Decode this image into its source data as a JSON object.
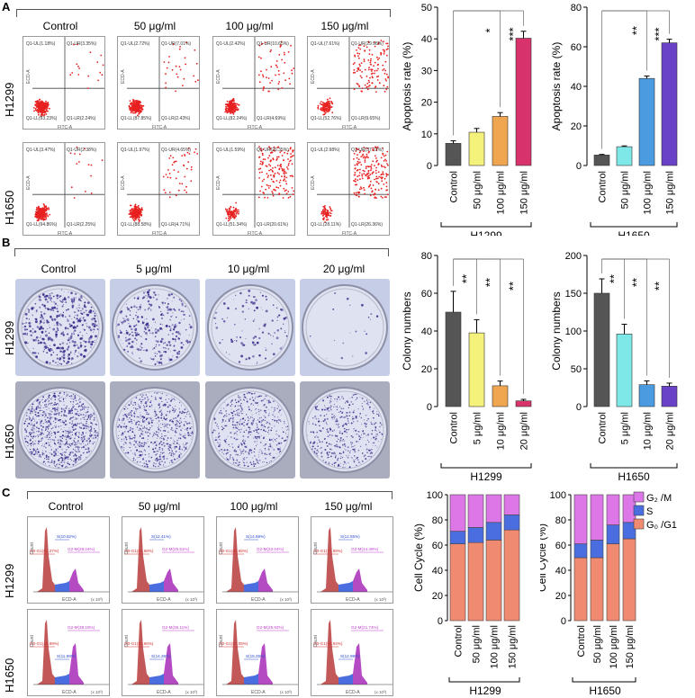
{
  "panels": {
    "a": {
      "letter": "A",
      "conditions": [
        "Control",
        "50 μg/ml",
        "100 μg/ml",
        "150 μg/ml"
      ],
      "rows": [
        {
          "label": "H1299",
          "quadrants": [
            [
              "Q1-UL(1.18%)",
              "Q1-UR(3.35%)",
              "Q1-LL(93.23%)",
              "Q1-LR(2.24%)"
            ],
            [
              "Q1-UL(2.72%)",
              "Q1-UR(7.01%)",
              "Q1-LL(87.85%)",
              "Q1-LR(2.43%)"
            ],
            [
              "Q1-UL(2.42%)",
              "Q1-UR(10.65%)",
              "Q1-LL(82.24%)",
              "Q1-LR(4.69%)"
            ],
            [
              "Q1-UL(7.61%)",
              "Q1-UR(29.98%)",
              "Q1-LL(52.76%)",
              "Q1-LR(9.65%)"
            ]
          ]
        },
        {
          "label": "H1650",
          "quadrants": [
            [
              "Q1-UL(3.47%)",
              "Q1-UR(2.38%)",
              "Q1-LL(94.86%)",
              "Q1-LR(2.25%)"
            ],
            [
              "Q1-UL(1.97%)",
              "Q1-UR(4.65%)",
              "Q1-LL(88.58%)",
              "Q1-LR(4.71%)"
            ],
            [
              "Q1-UL(1.59%)",
              "Q1-UR(26.35%)",
              "Q1-LL(51.34%)",
              "Q1-LR(20.61%)"
            ],
            [
              "Q1-UL(2.98%)",
              "Q1-UR(37.72%)",
              "Q1-LL(28.11%)",
              "Q1-LR(26.36%)"
            ]
          ]
        }
      ],
      "axis_x": "FITC-A",
      "axis_y": "ECD-A"
    },
    "b": {
      "letter": "B",
      "conditions": [
        "Control",
        "5 μg/ml",
        "10 μg/ml",
        "20 μg/ml"
      ],
      "rows": [
        "H1299",
        "H1650"
      ]
    },
    "c": {
      "letter": "C",
      "conditions": [
        "Control",
        "50 μg/ml",
        "100 μg/ml",
        "150 μg/ml"
      ],
      "rows": [
        {
          "label": "H1299",
          "gates": [
            [
              "G0-G1(61.27%)",
              "S(10.62%)",
              "G2-M(28.24%)"
            ],
            [
              "G0-G1(61.68%)",
              "S(12.41%)",
              "G2-M(25.51%)"
            ],
            [
              "G0-G1(63.65%)",
              "S(14.69%)",
              "G2-M(22.04%)"
            ],
            [
              "G0-G1(71.69%)",
              "S(12.55%)",
              "G2-M(14.49%)"
            ]
          ]
        },
        {
          "label": "H1650",
          "gates": [
            [
              "G0-G1(49.99%)",
              "S(11.99%)",
              "G2-M(38.18%)"
            ],
            [
              "G0-G1(50.66%)",
              "S(14.26%)",
              "G2-M(36.11%)"
            ],
            [
              "G0-G1(57.05%)",
              "S(15.25%)",
              "G2-M(25.92%)"
            ],
            [
              "G0-G1(58.94%)",
              "S(12.99%)",
              "G2-M(21.74%)"
            ]
          ]
        }
      ],
      "axis_x": "ECD-A",
      "axis_y": "Count",
      "axis_scale": "(x 10³)"
    }
  },
  "colors": {
    "control": "#555555",
    "low": "#f4f27a",
    "mid": "#f0a550",
    "high": "#d8326c",
    "h1650_low": "#7ee8e8",
    "h1650_mid": "#4a9be0",
    "h1650_high": "#6a42c8",
    "g01": "#f08a70",
    "s": "#4a6ee0",
    "g2m": "#dd77e8",
    "scatter": "#e82020"
  },
  "chart_data": [
    {
      "type": "bar",
      "id": "a-h1299",
      "title": "",
      "xlabel": "H1299",
      "ylabel": "Apoptosis rate (%)",
      "categories": [
        "Control",
        "50 μg/ml",
        "100 μg/ml",
        "150 μg/ml"
      ],
      "values": [
        7,
        10.5,
        15.5,
        40.2
      ],
      "errors": [
        0.8,
        1.2,
        1.2,
        2.2
      ],
      "ylim": [
        0,
        50
      ],
      "yticks": [
        0,
        10,
        20,
        30,
        40,
        50
      ],
      "significance": [
        {
          "to": 2,
          "label": "*"
        },
        {
          "to": 3,
          "label": "***"
        }
      ]
    },
    {
      "type": "bar",
      "id": "a-h1650",
      "title": "",
      "xlabel": "H1650",
      "ylabel": "Apoptosis rate (%)",
      "categories": [
        "Control",
        "50 μg/ml",
        "100 μg/ml",
        "150 μg/ml"
      ],
      "values": [
        5.3,
        9.5,
        44,
        62
      ],
      "errors": [
        0.3,
        0.4,
        1.2,
        1.8
      ],
      "ylim": [
        0,
        80
      ],
      "yticks": [
        0,
        20,
        40,
        60,
        80
      ],
      "significance": [
        {
          "to": 2,
          "label": "**"
        },
        {
          "to": 3,
          "label": "***"
        }
      ]
    },
    {
      "type": "bar",
      "id": "b-h1299",
      "title": "",
      "xlabel": "H1299",
      "ylabel": "Colony numbers",
      "categories": [
        "Control",
        "5 μg/ml",
        "10 μg/ml",
        "20 μg/ml"
      ],
      "values": [
        50,
        39,
        11,
        3
      ],
      "errors": [
        11,
        7,
        2.5,
        0.8
      ],
      "ylim": [
        0,
        80
      ],
      "yticks": [
        0,
        20,
        40,
        60,
        80
      ],
      "significance": [
        {
          "to": 1,
          "label": "**"
        },
        {
          "to": 2,
          "label": "**"
        },
        {
          "to": 3,
          "label": "**"
        }
      ]
    },
    {
      "type": "bar",
      "id": "b-h1650",
      "title": "",
      "xlabel": "H1650",
      "ylabel": "Colony numbers",
      "categories": [
        "Control",
        "5 μg/ml",
        "10 μg/ml",
        "20 μg/ml"
      ],
      "values": [
        150,
        96,
        29,
        27
      ],
      "errors": [
        19,
        13,
        5,
        4
      ],
      "ylim": [
        0,
        200
      ],
      "yticks": [
        0,
        50,
        100,
        150,
        200
      ],
      "significance": [
        {
          "to": 1,
          "label": "**"
        },
        {
          "to": 2,
          "label": "**"
        },
        {
          "to": 3,
          "label": "**"
        }
      ]
    },
    {
      "type": "bar",
      "stacked": true,
      "id": "c-h1299",
      "title": "",
      "xlabel": "H1299",
      "ylabel": "Cell Cycle (%)",
      "categories": [
        "Control",
        "50 μg/ml",
        "100 μg/ml",
        "150 μg/ml"
      ],
      "ylim": [
        0,
        100
      ],
      "yticks": [
        0,
        20,
        40,
        60,
        80,
        100
      ],
      "series": [
        {
          "name": "G0/G1",
          "values": [
            61,
            62,
            64,
            72
          ]
        },
        {
          "name": "S",
          "values": [
            10,
            12,
            14,
            12
          ]
        },
        {
          "name": "G2/M",
          "values": [
            29,
            26,
            22,
            16
          ]
        }
      ]
    },
    {
      "type": "bar",
      "stacked": true,
      "id": "c-h1650",
      "title": "",
      "xlabel": "H1650",
      "ylabel": "Cell Cycle (%)",
      "categories": [
        "Control",
        "50 μg/ml",
        "100 μg/ml",
        "150 μg/ml"
      ],
      "ylim": [
        0,
        100
      ],
      "yticks": [
        0,
        20,
        40,
        60,
        80,
        100
      ],
      "series": [
        {
          "name": "G0/G1",
          "values": [
            50,
            50,
            61,
            65
          ]
        },
        {
          "name": "S",
          "values": [
            11,
            14,
            15,
            13
          ]
        },
        {
          "name": "G2/M",
          "values": [
            39,
            36,
            24,
            22
          ]
        }
      ]
    }
  ],
  "legend_c": {
    "g2m": "G₂ /M",
    "s": "S",
    "g01": "G₀ /G1"
  }
}
